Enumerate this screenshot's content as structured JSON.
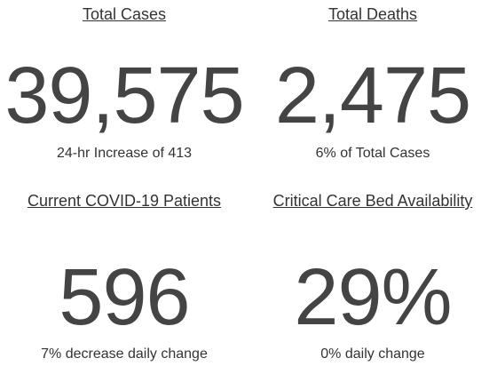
{
  "cards": [
    {
      "title": "Total Cases",
      "value": "39,575",
      "note": "24-hr Increase of 413"
    },
    {
      "title": "Total Deaths",
      "value": "2,475",
      "note": "6% of Total Cases"
    },
    {
      "title": "Current COVID-19 Patients",
      "value": "596",
      "note": "7% decrease daily change"
    },
    {
      "title": "Critical Care Bed Availability",
      "value": "29%",
      "note": "0% daily change"
    }
  ]
}
